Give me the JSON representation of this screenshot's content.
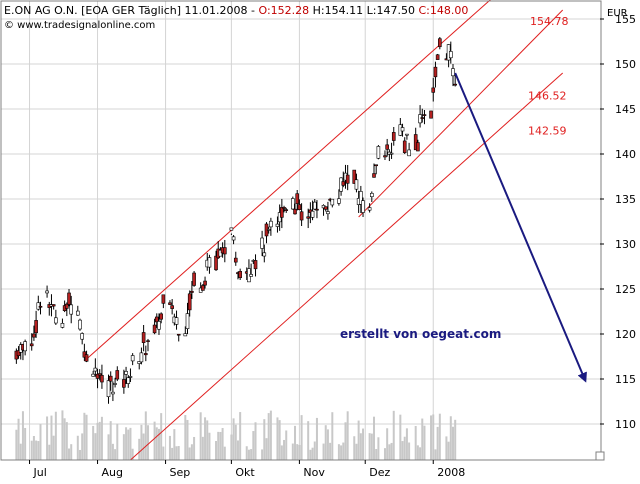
{
  "header": {
    "title": "E.ON AG O.N. [EOA GER  Täglich] 11.01.2008 - ",
    "open": "O:152.28",
    "high": "H:154.11",
    "low": "L:147.50",
    "close": "C:148.00",
    "source": "© www.tradesignalonline.com"
  },
  "colors": {
    "up_candle": "#ffffff",
    "down_candle": "#b42020",
    "channel": "#e02020",
    "arrow": "#1a1a80",
    "annotation": "#1a1a80",
    "header_red": "#c00000",
    "volume": "#c8c8c8"
  },
  "chart_data": {
    "type": "candlestick",
    "y_axis_unit": "EUR",
    "ylim": [
      106,
      157
    ],
    "y_ticks": [
      110,
      115,
      120,
      125,
      130,
      135,
      140,
      145,
      150,
      155
    ],
    "x_ticks": [
      "Jul",
      "Aug",
      "Sep",
      "Okt",
      "Nov",
      "Dez",
      "2008"
    ],
    "annotations": [
      "154.78",
      "146.52",
      "142.59"
    ],
    "watermark": "erstellt von oegeat.com",
    "price_series": [
      {
        "date": "2007-06-25",
        "o": 118,
        "h": 120,
        "l": 116,
        "c": 119
      },
      {
        "date": "2007-07-02",
        "o": 119,
        "h": 125,
        "l": 118,
        "c": 124
      },
      {
        "date": "2007-07-09",
        "o": 124,
        "h": 125.5,
        "l": 121,
        "c": 122
      },
      {
        "date": "2007-07-16",
        "o": 122,
        "h": 125,
        "l": 119,
        "c": 124
      },
      {
        "date": "2007-07-23",
        "o": 123,
        "h": 124,
        "l": 116,
        "c": 117
      },
      {
        "date": "2007-07-30",
        "o": 117,
        "h": 118,
        "l": 112,
        "c": 114
      },
      {
        "date": "2007-08-06",
        "o": 114,
        "h": 117,
        "l": 110,
        "c": 115
      },
      {
        "date": "2007-08-13",
        "o": 115,
        "h": 118,
        "l": 112,
        "c": 117
      },
      {
        "date": "2007-08-20",
        "o": 117,
        "h": 121,
        "l": 116,
        "c": 120
      },
      {
        "date": "2007-08-27",
        "o": 120,
        "h": 124,
        "l": 119,
        "c": 123
      },
      {
        "date": "2007-09-03",
        "o": 123,
        "h": 124,
        "l": 119,
        "c": 121
      },
      {
        "date": "2007-09-10",
        "o": 121,
        "h": 127,
        "l": 120,
        "c": 126
      },
      {
        "date": "2007-09-17",
        "o": 126,
        "h": 129,
        "l": 125,
        "c": 128
      },
      {
        "date": "2007-09-24",
        "o": 128,
        "h": 131,
        "l": 127,
        "c": 130
      },
      {
        "date": "2007-10-01",
        "o": 130,
        "h": 131,
        "l": 126,
        "c": 127
      },
      {
        "date": "2007-10-08",
        "o": 127,
        "h": 130,
        "l": 126,
        "c": 129
      },
      {
        "date": "2007-10-15",
        "o": 129,
        "h": 133,
        "l": 127,
        "c": 132
      },
      {
        "date": "2007-10-22",
        "o": 132,
        "h": 136,
        "l": 131,
        "c": 135
      },
      {
        "date": "2007-10-29",
        "o": 135,
        "h": 136,
        "l": 132,
        "c": 133
      },
      {
        "date": "2007-11-05",
        "o": 133,
        "h": 135,
        "l": 131,
        "c": 134
      },
      {
        "date": "2007-11-12",
        "o": 134,
        "h": 136,
        "l": 132,
        "c": 135
      },
      {
        "date": "2007-11-19",
        "o": 135,
        "h": 139,
        "l": 134,
        "c": 138
      },
      {
        "date": "2007-11-26",
        "o": 137,
        "h": 138,
        "l": 133,
        "c": 134
      },
      {
        "date": "2007-12-03",
        "o": 134,
        "h": 141,
        "l": 133.5,
        "c": 140
      },
      {
        "date": "2007-12-10",
        "o": 140,
        "h": 143,
        "l": 139,
        "c": 142
      },
      {
        "date": "2007-12-17",
        "o": 142,
        "h": 144,
        "l": 140,
        "c": 141
      },
      {
        "date": "2007-12-24",
        "o": 141,
        "h": 146,
        "l": 141,
        "c": 145
      },
      {
        "date": "2007-12-31",
        "o": 145,
        "h": 153,
        "l": 144,
        "c": 152
      },
      {
        "date": "2008-01-07",
        "o": 152,
        "h": 154.78,
        "l": 147.5,
        "c": 148
      }
    ],
    "projection_arrow": {
      "from": {
        "date": "2008-01-11",
        "value": 149
      },
      "to": {
        "date": "2008-03-10",
        "value": 115
      }
    }
  }
}
